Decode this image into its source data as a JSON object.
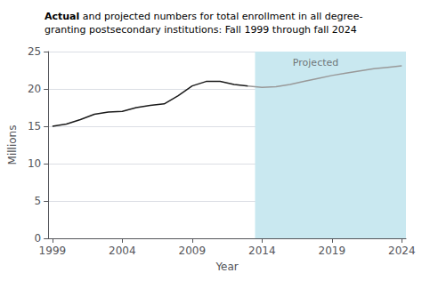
{
  "chart_data": {
    "type": "line",
    "title": "Actual and projected numbers for total enrollment in all degree-\ngranting postsecondary institutions: Fall 1999 through fall 2024",
    "xlabel": "Year",
    "ylabel": "Millions",
    "xlim": [
      1998.7,
      2024.3
    ],
    "xticks": [
      1999,
      2004,
      2009,
      2014,
      2019,
      2024
    ],
    "ylim": [
      0,
      25
    ],
    "yticks": [
      0,
      5,
      10,
      15,
      20,
      25
    ],
    "grid": true,
    "series": [
      {
        "color": "#1a1a1a",
        "x": [
          1999,
          2000,
          2001,
          2002,
          2003,
          2004,
          2005,
          2006,
          2007,
          2008,
          2009,
          2010,
          2011,
          2012,
          2013
        ],
        "values": [
          15.0,
          15.3,
          15.9,
          16.6,
          16.9,
          17.0,
          17.5,
          17.8,
          18.0,
          19.1,
          20.4,
          21.0,
          21.0,
          20.6,
          20.4
        ]
      },
      {
        "color": "#999999",
        "x": [
          2013,
          2014,
          2015,
          2016,
          2017,
          2018,
          2019,
          2020,
          2021,
          2022,
          2023,
          2024
        ],
        "values": [
          20.4,
          20.2,
          20.3,
          20.6,
          21.0,
          21.4,
          21.8,
          22.1,
          22.4,
          22.7,
          22.9,
          23.1
        ]
      }
    ],
    "shaded_region": {
      "from": 2013.5,
      "color": "#c9e8f0"
    },
    "annotations": [
      {
        "text": "Projected",
        "x": 2016.2,
        "y": 24.2
      }
    ]
  }
}
